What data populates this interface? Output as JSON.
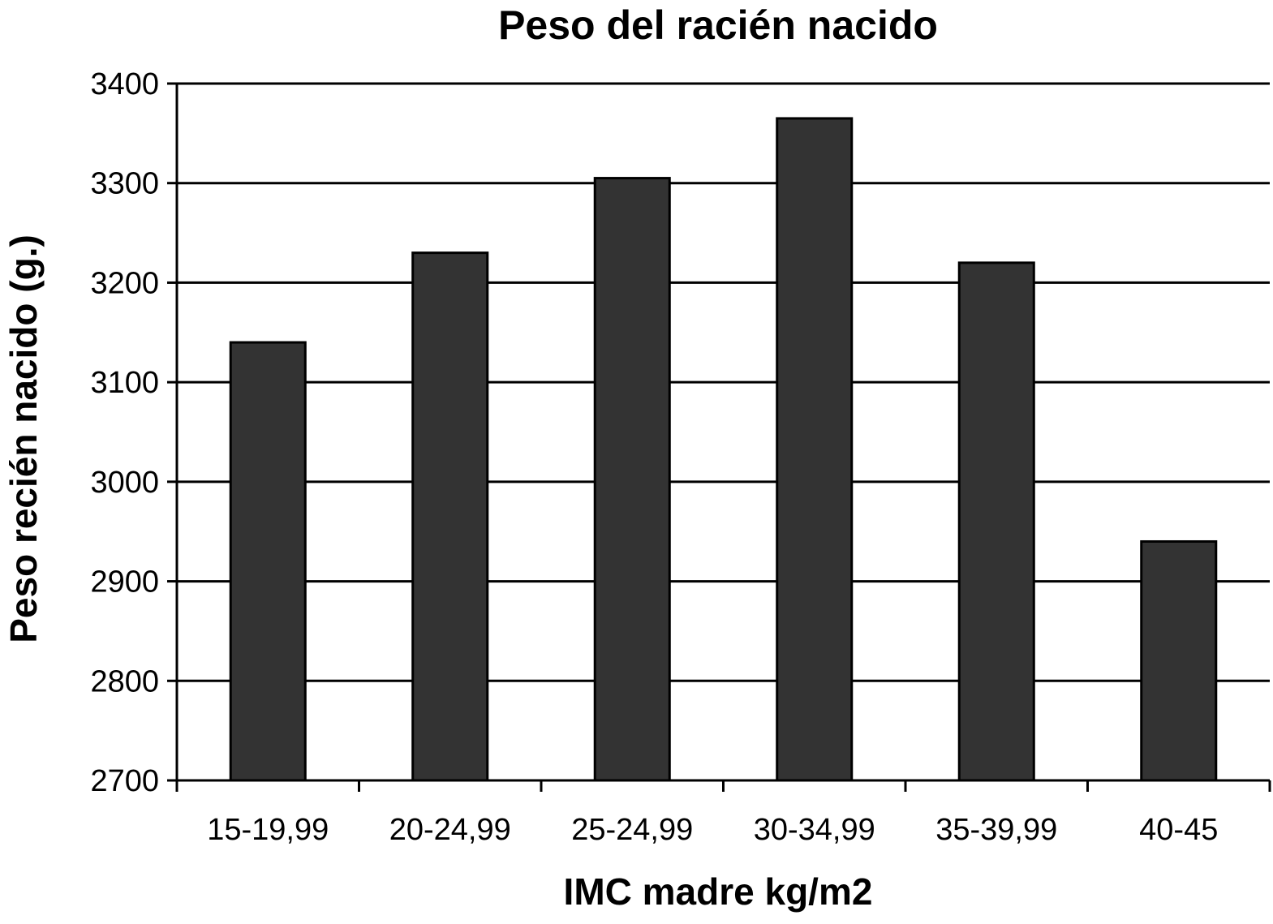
{
  "chart_data": {
    "type": "bar",
    "title": "Peso del racién nacido",
    "xlabel": "IMC madre kg/m2",
    "ylabel": "Peso recién nacido (g.)",
    "categories": [
      "15-19,99",
      "20-24,99",
      "25-24,99",
      "30-34,99",
      "35-39,99",
      "40-45"
    ],
    "values": [
      3140,
      3230,
      3305,
      3365,
      3220,
      2940
    ],
    "ylim": [
      2700,
      3400
    ],
    "yticks": [
      2700,
      2800,
      2900,
      3000,
      3100,
      3200,
      3300,
      3400
    ],
    "grid": true,
    "legend": "none",
    "bar_color": "#333333"
  }
}
